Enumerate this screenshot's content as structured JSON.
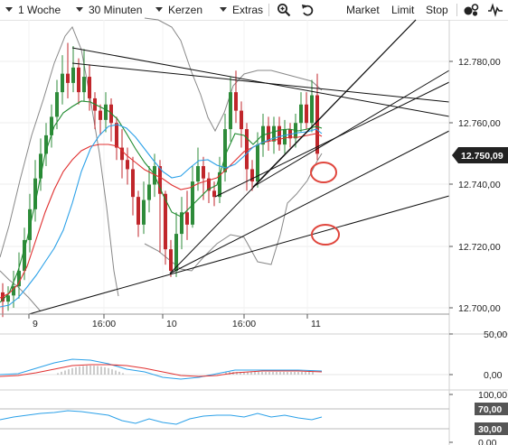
{
  "toolbar": {
    "range": "1 Woche",
    "interval": "30 Minuten",
    "chart_type": "Kerzen",
    "extras": "Extras",
    "market": "Market",
    "limit": "Limit",
    "stop": "Stop"
  },
  "price_axis": [
    "12.780,00",
    "12.760,00",
    "12.740,00",
    "12.720,00",
    "12.700,00"
  ],
  "current_price": "12.750,09",
  "time_axis": [
    "9",
    "16:00",
    "10",
    "16:00",
    "11"
  ],
  "macd_axis": [
    "50,00",
    "0,00"
  ],
  "rsi_axis": [
    "100,00",
    "70,00",
    "30,00",
    "0,00"
  ],
  "colors": {
    "up": "#2e8b3a",
    "down": "#c0262b",
    "ema_fast": "#1e8a2e",
    "ema_mid": "#e03030",
    "ema_slow": "#2aa0e8",
    "bollinger": "#888888",
    "rsi": "#2aa0e8",
    "tag": "#222222",
    "marker": "#e0463d"
  },
  "chart_data": [
    {
      "type": "candlestick",
      "y_ticks": [
        12780,
        12760,
        12740,
        12720,
        12700
      ],
      "current_value": 12750.09,
      "x_ticks": [
        "9",
        "16:00",
        "10",
        "16:00",
        "11"
      ]
    },
    {
      "type": "line",
      "y_ticks": [
        "50,00",
        "0,00"
      ]
    },
    {
      "type": "line",
      "y_ticks": [
        "100,00",
        "70,00",
        "30,00",
        "0,00"
      ]
    }
  ]
}
